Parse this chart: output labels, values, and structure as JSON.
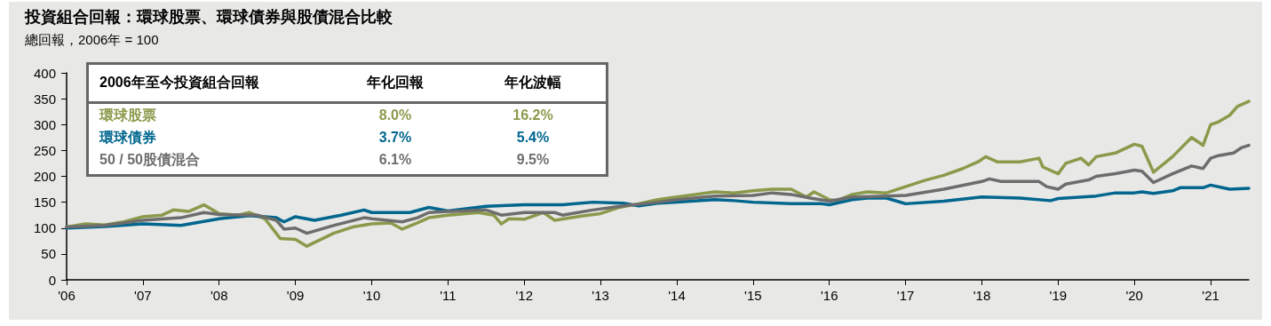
{
  "chart_data": {
    "type": "line",
    "title": "投資組合回報：環球股票、環球債券與股債混合比較",
    "subtitle": "總回報，2006年 = 100",
    "legend": "top left",
    "legend_title": "2006年至今投資組合回報",
    "annotations": [
      "年化回報",
      "年化波幅",
      "8.0%",
      "16.2%",
      "3.7%",
      "5.4%",
      "6.1%",
      "9.5%"
    ],
    "xlim": [
      2006,
      2021.5
    ],
    "xticks": [
      {
        "value": 2006,
        "label": "'06"
      },
      {
        "value": 2007,
        "label": "'07"
      },
      {
        "value": 2008,
        "label": "'08"
      },
      {
        "value": 2009,
        "label": "'09"
      },
      {
        "value": 2010,
        "label": "'10"
      },
      {
        "value": 2011,
        "label": "'11"
      },
      {
        "value": 2012,
        "label": "'12"
      },
      {
        "value": 2013,
        "label": "'13"
      },
      {
        "value": 2014,
        "label": "'14"
      },
      {
        "value": 2015,
        "label": "'15"
      },
      {
        "value": 2016,
        "label": "'16"
      },
      {
        "value": 2017,
        "label": "'17"
      },
      {
        "value": 2018,
        "label": "'18"
      },
      {
        "value": 2019,
        "label": "'19"
      },
      {
        "value": 2020,
        "label": "'20"
      },
      {
        "value": 2021,
        "label": "'21"
      }
    ],
    "ylim": [
      0,
      400
    ],
    "yticks": [
      0,
      50,
      100,
      150,
      200,
      250,
      300,
      350,
      400
    ],
    "grid": false,
    "marker": "none",
    "line_style": "solid",
    "series": [
      {
        "name": "環球股票",
        "color": "#8a9a4b",
        "x": [
          2006,
          2006.25,
          2006.5,
          2006.75,
          2007,
          2007.25,
          2007.4,
          2007.6,
          2007.8,
          2008,
          2008.25,
          2008.4,
          2008.6,
          2008.8,
          2009,
          2009.15,
          2009.5,
          2009.75,
          2010,
          2010.25,
          2010.4,
          2010.6,
          2010.75,
          2011,
          2011.4,
          2011.6,
          2011.7,
          2011.8,
          2012,
          2012.25,
          2012.4,
          2012.75,
          2013,
          2013.25,
          2013.5,
          2013.75,
          2014,
          2014.5,
          2014.75,
          2015,
          2015.25,
          2015.5,
          2015.7,
          2015.8,
          2016,
          2016.1,
          2016.3,
          2016.5,
          2016.75,
          2017,
          2017.25,
          2017.5,
          2017.75,
          2017.95,
          2018.05,
          2018.2,
          2018.5,
          2018.75,
          2018.8,
          2019,
          2019.1,
          2019.3,
          2019.4,
          2019.5,
          2019.75,
          2020,
          2020.1,
          2020.25,
          2020.5,
          2020.75,
          2020.9,
          2021,
          2021.1,
          2021.25,
          2021.35,
          2021.5
        ],
        "values": [
          102,
          108,
          106,
          112,
          122,
          125,
          135,
          132,
          145,
          128,
          125,
          130,
          118,
          80,
          78,
          65,
          90,
          102,
          108,
          110,
          98,
          110,
          120,
          125,
          130,
          125,
          108,
          118,
          117,
          130,
          115,
          123,
          128,
          140,
          147,
          155,
          160,
          170,
          168,
          172,
          175,
          175,
          160,
          170,
          155,
          153,
          165,
          170,
          168,
          180,
          192,
          202,
          215,
          228,
          238,
          228,
          228,
          235,
          218,
          205,
          225,
          235,
          222,
          238,
          245,
          262,
          258,
          208,
          238,
          275,
          260,
          300,
          305,
          318,
          335,
          345
        ]
      },
      {
        "name": "環球債券",
        "color": "#00668e",
        "x": [
          2006,
          2006.5,
          2007,
          2007.5,
          2008,
          2008.4,
          2008.75,
          2008.85,
          2009,
          2009.25,
          2009.6,
          2009.9,
          2010,
          2010.5,
          2010.75,
          2011,
          2011.5,
          2012,
          2012.5,
          2012.9,
          2013.3,
          2013.5,
          2013.75,
          2014,
          2014.5,
          2014.75,
          2015,
          2015.5,
          2015.9,
          2016,
          2016.3,
          2016.5,
          2016.75,
          2017,
          2017.5,
          2018,
          2018.5,
          2018.9,
          2019,
          2019.5,
          2019.75,
          2020,
          2020.1,
          2020.25,
          2020.5,
          2020.6,
          2020.9,
          2021,
          2021.25,
          2021.5
        ],
        "values": [
          100,
          103,
          108,
          105,
          118,
          124,
          120,
          112,
          122,
          115,
          125,
          135,
          130,
          130,
          140,
          133,
          142,
          145,
          145,
          150,
          148,
          143,
          148,
          150,
          155,
          153,
          150,
          147,
          147,
          145,
          155,
          158,
          158,
          147,
          152,
          160,
          158,
          153,
          157,
          162,
          168,
          168,
          170,
          167,
          172,
          178,
          178,
          183,
          175,
          177
        ]
      },
      {
        "name": "50 / 50股債混合",
        "color": "#6d6d6d",
        "x": [
          2006,
          2006.5,
          2007,
          2007.5,
          2007.8,
          2008,
          2008.5,
          2008.75,
          2008.85,
          2009,
          2009.15,
          2009.5,
          2009.9,
          2010,
          2010.4,
          2010.6,
          2010.75,
          2011,
          2011.5,
          2011.7,
          2012,
          2012.4,
          2012.5,
          2012.9,
          2013.3,
          2013.75,
          2014,
          2014.5,
          2015,
          2015.25,
          2015.5,
          2015.75,
          2016,
          2016.3,
          2016.75,
          2017,
          2017.5,
          2018,
          2018.1,
          2018.25,
          2018.75,
          2018.85,
          2019,
          2019.1,
          2019.4,
          2019.5,
          2019.75,
          2020,
          2020.1,
          2020.25,
          2020.5,
          2020.75,
          2020.9,
          2021,
          2021.1,
          2021.3,
          2021.4,
          2021.5
        ],
        "values": [
          102,
          105,
          115,
          120,
          130,
          126,
          125,
          115,
          98,
          100,
          90,
          105,
          120,
          118,
          112,
          120,
          130,
          132,
          135,
          125,
          130,
          130,
          125,
          135,
          143,
          150,
          155,
          162,
          163,
          168,
          165,
          158,
          152,
          160,
          162,
          163,
          175,
          190,
          195,
          190,
          190,
          180,
          175,
          185,
          193,
          200,
          205,
          212,
          210,
          188,
          205,
          220,
          215,
          235,
          240,
          245,
          255,
          260
        ]
      }
    ]
  }
}
